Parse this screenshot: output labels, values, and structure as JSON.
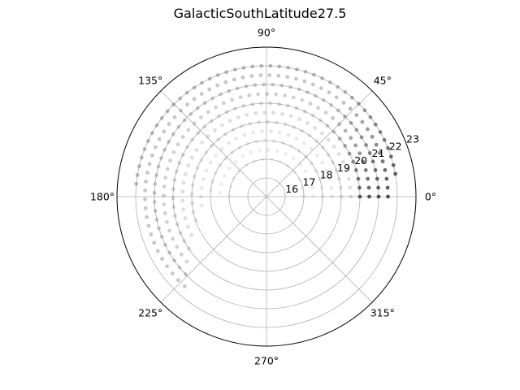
{
  "chart_data": {
    "type": "scatter",
    "projection": "polar",
    "title": "GalacticSouthLatitude27.5",
    "angle_ticks_deg": [
      0,
      45,
      90,
      135,
      180,
      225,
      270,
      315
    ],
    "angle_tick_labels": [
      "0°",
      "45°",
      "90°",
      "135°",
      "180°",
      "225°",
      "270°",
      "315°"
    ],
    "r_ticks": [
      16,
      17,
      18,
      19,
      20,
      21,
      22,
      23
    ],
    "r_tick_labels": [
      "16",
      "17",
      "18",
      "19",
      "20",
      "21",
      "22",
      "23"
    ],
    "r_range": [
      15,
      23
    ],
    "r_label_angle_deg": 22.5,
    "grid": true,
    "marker_color": "#000000",
    "point_alpha_range": [
      0.05,
      0.7
    ],
    "description_rows": [
      {
        "r": 17,
        "theta_start": 0,
        "theta_end": 180,
        "alpha": 0.06
      },
      {
        "r": 17.5,
        "theta_start": 0,
        "theta_end": 180,
        "alpha": 0.07
      },
      {
        "r": 18,
        "theta_start": 0,
        "theta_end": 180,
        "alpha": 0.08
      },
      {
        "r": 18.5,
        "theta_start": 0,
        "theta_end": 195,
        "alpha": 0.09
      },
      {
        "r": 19,
        "theta_start": 0,
        "theta_end": 205,
        "alpha": 0.11
      },
      {
        "r": 19.5,
        "theta_start": 0,
        "theta_end": 210,
        "alpha": 0.13
      },
      {
        "r": 20,
        "theta_start": 0,
        "theta_end": 215,
        "alpha": 0.15
      },
      {
        "r": 20.5,
        "theta_start": 0,
        "theta_end": 222,
        "alpha": 0.18
      },
      {
        "r": 21,
        "theta_start": 0,
        "theta_end": 226,
        "alpha": 0.2
      },
      {
        "r": 21.5,
        "theta_start": 0,
        "theta_end": 228,
        "alpha": 0.22
      },
      {
        "r": 22,
        "theta_start": 10,
        "theta_end": 175,
        "alpha": 0.25
      }
    ]
  }
}
